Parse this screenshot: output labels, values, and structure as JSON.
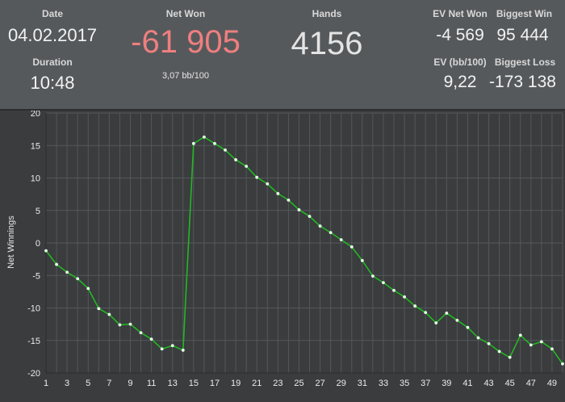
{
  "stats": {
    "date_label": "Date",
    "date_value": "04.02.2017",
    "duration_label": "Duration",
    "duration_value": "10:48",
    "netwon_label": "Net Won",
    "netwon_value": "-61 905",
    "netwon_bb": "3,07 bb/100",
    "hands_label": "Hands",
    "hands_value": "4156",
    "ev_netwon_label": "EV Net Won",
    "ev_netwon_value": "-4 569",
    "biggest_win_label": "Biggest Win",
    "biggest_win_value": "95 444",
    "ev_bb_label": "EV (bb/100)",
    "ev_bb_value": "9,22",
    "biggest_loss_label": "Biggest Loss",
    "biggest_loss_value": "-173 138"
  },
  "colors": {
    "negative": "#ef7f7f",
    "line": "#22b822",
    "marker": "#e8ffe8",
    "grid": "#55585a"
  },
  "chart_data": {
    "type": "line",
    "ylabel": "Net Winnings",
    "xlabel": "",
    "ylim": [
      -20,
      20
    ],
    "xlim": [
      1,
      50
    ],
    "yticks": [
      20,
      15,
      10,
      5,
      0,
      -5,
      -10,
      -15,
      -20
    ],
    "xticks": [
      1,
      3,
      5,
      7,
      9,
      11,
      13,
      15,
      17,
      19,
      21,
      23,
      25,
      27,
      29,
      31,
      33,
      35,
      37,
      39,
      41,
      43,
      45,
      47,
      49
    ],
    "grid": true,
    "series": [
      {
        "x": [
          1,
          2,
          3,
          4,
          5,
          6,
          7,
          8,
          9,
          10,
          11,
          12,
          13,
          14,
          15,
          16,
          17,
          18,
          19,
          20,
          21,
          22,
          23,
          24,
          25,
          26,
          27,
          28,
          29,
          30,
          31,
          32,
          33,
          34,
          35,
          36,
          37,
          38,
          39,
          40,
          41,
          42,
          43,
          44,
          45,
          46,
          47,
          48,
          49,
          50
        ],
        "y": [
          -1.2,
          -3.3,
          -4.5,
          -5.5,
          -7.0,
          -10.1,
          -11.0,
          -12.6,
          -12.5,
          -13.8,
          -14.8,
          -16.3,
          -15.8,
          -16.5,
          15.3,
          16.3,
          15.3,
          14.3,
          12.8,
          11.8,
          10.1,
          9.1,
          7.6,
          6.6,
          5.1,
          4.1,
          2.6,
          1.6,
          0.5,
          -0.6,
          -2.7,
          -5.1,
          -6.1,
          -7.3,
          -8.3,
          -9.7,
          -10.7,
          -12.3,
          -10.8,
          -11.9,
          -13.0,
          -14.6,
          -15.5,
          -16.7,
          -17.6,
          -14.2,
          -15.7,
          -15.2,
          -16.3,
          -18.6
        ]
      }
    ]
  }
}
